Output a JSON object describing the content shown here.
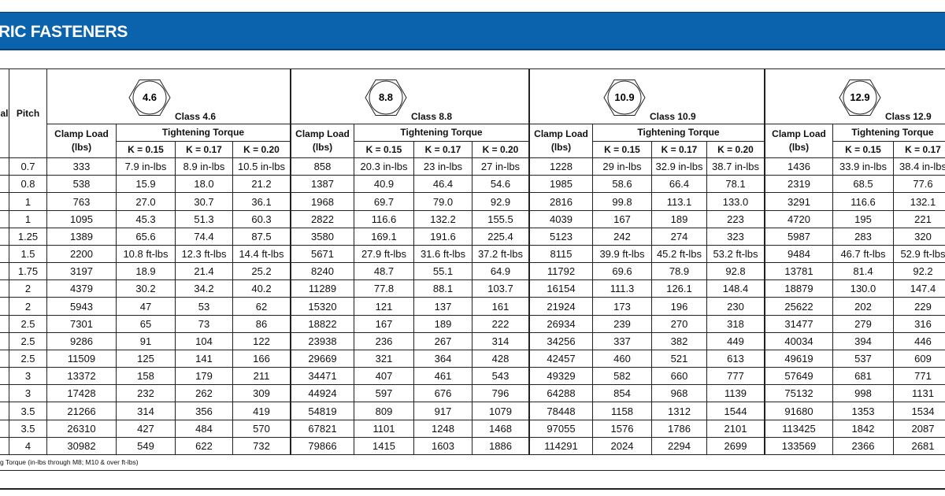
{
  "header": {
    "title": "RIC FASTENERS"
  },
  "table": {
    "first_header": "al",
    "pitch_header": "Pitch",
    "classes": [
      {
        "hex_label": "4.6",
        "label": "Class 4.6",
        "clamp_load_title": "Clamp Load",
        "clamp_load_unit": "(lbs)",
        "torque_header": "Tightening Torque",
        "k_headers": [
          "K = 0.15",
          "K = 0.17",
          "K = 0.20"
        ]
      },
      {
        "hex_label": "8.8",
        "label": "Class 8.8",
        "clamp_load_title": "Clamp Load",
        "clamp_load_unit": "(lbs)",
        "torque_header": "Tightening Torque",
        "k_headers": [
          "K = 0.15",
          "K = 0.17",
          "K = 0.20"
        ]
      },
      {
        "hex_label": "10.9",
        "label": "Class 10.9",
        "clamp_load_title": "Clamp Load",
        "clamp_load_unit": "(lbs)",
        "torque_header": "Tightening Torque",
        "k_headers": [
          "K = 0.15",
          "K = 0.17",
          "K = 0.20"
        ]
      },
      {
        "hex_label": "12.9",
        "label": "Class 12.9",
        "clamp_load_title": "Clamp Load",
        "clamp_load_unit": "(lbs)",
        "torque_header": "Tightening Torque",
        "k_headers": [
          "K = 0.15",
          "K = 0.17"
        ]
      }
    ],
    "rows": [
      [
        "0.7",
        "333",
        "7.9 in-lbs",
        "8.9 in-lbs",
        "10.5 in-lbs",
        "858",
        "20.3 in-lbs",
        "23 in-lbs",
        "27 in-lbs",
        "1228",
        "29 in-lbs",
        "32.9 in-lbs",
        "38.7 in-lbs",
        "1436",
        "33.9 in-lbs",
        "38.4 in-lbs"
      ],
      [
        "0.8",
        "538",
        "15.9",
        "18.0",
        "21.2",
        "1387",
        "40.9",
        "46.4",
        "54.6",
        "1985",
        "58.6",
        "66.4",
        "78.1",
        "2319",
        "68.5",
        "77.6"
      ],
      [
        "1",
        "763",
        "27.0",
        "30.7",
        "36.1",
        "1968",
        "69.7",
        "79.0",
        "92.9",
        "2816",
        "99.8",
        "113.1",
        "133.0",
        "3291",
        "116.6",
        "132.1"
      ],
      [
        "1",
        "1095",
        "45.3",
        "51.3",
        "60.3",
        "2822",
        "116.6",
        "132.2",
        "155.5",
        "4039",
        "167",
        "189",
        "223",
        "4720",
        "195",
        "221"
      ],
      [
        "1.25",
        "1389",
        "65.6",
        "74.4",
        "87.5",
        "3580",
        "169.1",
        "191.6",
        "225.4",
        "5123",
        "242",
        "274",
        "323",
        "5987",
        "283",
        "320"
      ],
      [
        "1.5",
        "2200",
        "10.8 ft-lbs",
        "12.3 ft-lbs",
        "14.4 ft-lbs",
        "5671",
        "27.9 ft-lbs",
        "31.6 ft-lbs",
        "37.2 ft-lbs",
        "8115",
        "39.9 ft-lbs",
        "45.2 ft-lbs",
        "53.2 ft-lbs",
        "9484",
        "46.7 ft-lbs",
        "52.9 ft-lbs"
      ],
      [
        "1.75",
        "3197",
        "18.9",
        "21.4",
        "25.2",
        "8240",
        "48.7",
        "55.1",
        "64.9",
        "11792",
        "69.6",
        "78.9",
        "92.8",
        "13781",
        "81.4",
        "92.2"
      ],
      [
        "2",
        "4379",
        "30.2",
        "34.2",
        "40.2",
        "11289",
        "77.8",
        "88.1",
        "103.7",
        "16154",
        "111.3",
        "126.1",
        "148.4",
        "18879",
        "130.0",
        "147.4"
      ],
      [
        "2",
        "5943",
        "47",
        "53",
        "62",
        "15320",
        "121",
        "137",
        "161",
        "21924",
        "173",
        "196",
        "230",
        "25622",
        "202",
        "229"
      ],
      [
        "2.5",
        "7301",
        "65",
        "73",
        "86",
        "18822",
        "167",
        "189",
        "222",
        "26934",
        "239",
        "270",
        "318",
        "31477",
        "279",
        "316"
      ],
      [
        "2.5",
        "9286",
        "91",
        "104",
        "122",
        "23938",
        "236",
        "267",
        "314",
        "34256",
        "337",
        "382",
        "449",
        "40034",
        "394",
        "446"
      ],
      [
        "2.5",
        "11509",
        "125",
        "141",
        "166",
        "29669",
        "321",
        "364",
        "428",
        "42457",
        "460",
        "521",
        "613",
        "49619",
        "537",
        "609"
      ],
      [
        "3",
        "13372",
        "158",
        "179",
        "211",
        "34471",
        "407",
        "461",
        "543",
        "49329",
        "582",
        "660",
        "777",
        "57649",
        "681",
        "771"
      ],
      [
        "3",
        "17428",
        "232",
        "262",
        "309",
        "44924",
        "597",
        "676",
        "796",
        "64288",
        "854",
        "968",
        "1139",
        "75132",
        "998",
        "1131"
      ],
      [
        "3.5",
        "21266",
        "314",
        "356",
        "419",
        "54819",
        "809",
        "917",
        "1079",
        "78448",
        "1158",
        "1312",
        "1544",
        "91680",
        "1353",
        "1534"
      ],
      [
        "3.5",
        "26310",
        "427",
        "484",
        "570",
        "67821",
        "1101",
        "1248",
        "1468",
        "97055",
        "1576",
        "1786",
        "2101",
        "113425",
        "1842",
        "2087"
      ],
      [
        "4",
        "30982",
        "549",
        "622",
        "732",
        "79866",
        "1415",
        "1603",
        "1886",
        "114291",
        "2024",
        "2294",
        "2699",
        "133569",
        "2366",
        "2681"
      ]
    ],
    "footnote": "g Torque (in-lbs through M8; M10 & over ft-lbs)"
  }
}
